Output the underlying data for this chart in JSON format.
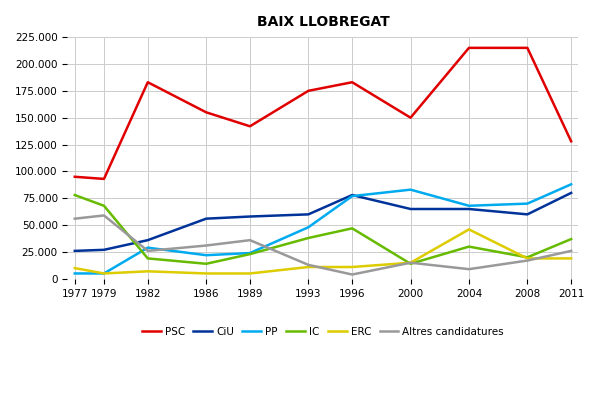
{
  "title": "BAIX LLOBREGAT",
  "years": [
    1977,
    1979,
    1982,
    1986,
    1989,
    1993,
    1996,
    2000,
    2004,
    2008,
    2011
  ],
  "series": {
    "PSC": {
      "values": [
        95000,
        93000,
        183000,
        155000,
        142000,
        175000,
        183000,
        150000,
        215000,
        215000,
        128000
      ],
      "color": "#e00000",
      "linewidth": 1.8
    },
    "CiU": {
      "values": [
        26000,
        27000,
        36000,
        56000,
        58000,
        60000,
        78000,
        65000,
        65000,
        60000,
        80000
      ],
      "color": "#003399",
      "linewidth": 1.8
    },
    "PP": {
      "values": [
        5000,
        5000,
        29000,
        22000,
        24000,
        48000,
        77000,
        83000,
        68000,
        70000,
        88000
      ],
      "color": "#00aaee",
      "linewidth": 1.8
    },
    "IC": {
      "values": [
        78000,
        68000,
        19000,
        14000,
        23000,
        38000,
        47000,
        14000,
        30000,
        20000,
        37000
      ],
      "color": "#66bb00",
      "linewidth": 1.8
    },
    "ERC": {
      "values": [
        10000,
        5000,
        7000,
        5000,
        5000,
        11000,
        11000,
        15000,
        46000,
        19000,
        19000
      ],
      "color": "#ddcc00",
      "linewidth": 1.8
    },
    "Altres candidatures": {
      "values": [
        56000,
        59000,
        26000,
        31000,
        36000,
        13000,
        4000,
        15000,
        9000,
        17000,
        26000
      ],
      "color": "#999999",
      "linewidth": 1.8
    }
  },
  "ylim": [
    0,
    225000
  ],
  "yticks": [
    0,
    25000,
    50000,
    75000,
    100000,
    125000,
    150000,
    175000,
    200000,
    225000
  ],
  "ytick_labels": [
    "0",
    "25.000",
    "50.000",
    "75.000",
    "100.000",
    "125.000",
    "150.000",
    "175.000",
    "200.000",
    "225.000"
  ],
  "xticks": [
    1977,
    1979,
    1982,
    1986,
    1989,
    1993,
    1996,
    2000,
    2004,
    2008,
    2011
  ],
  "background_color": "#ffffff",
  "grid_color": "#cccccc",
  "legend_order": [
    "PSC",
    "CiU",
    "PP",
    "IC",
    "ERC",
    "Altres candidatures"
  ]
}
